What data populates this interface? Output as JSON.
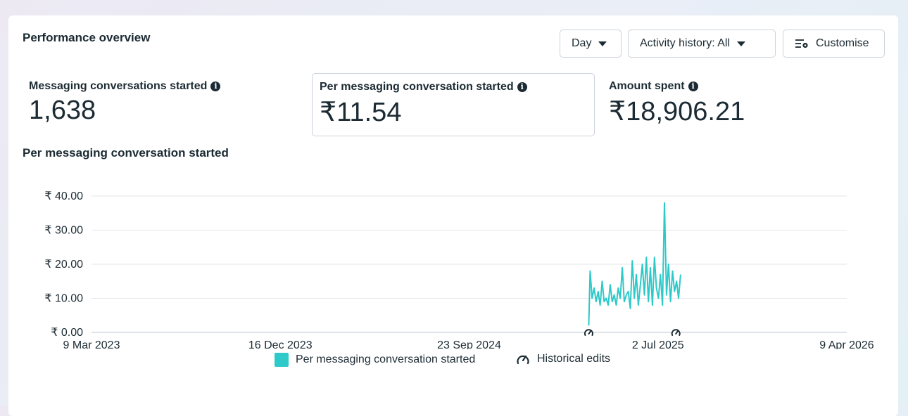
{
  "header": {
    "title": "Performance overview",
    "day_label": "Day",
    "activity_label": "Activity history: All",
    "customise_label": "Customise"
  },
  "metrics": [
    {
      "label": "Messaging conversations started",
      "value": "1,638"
    },
    {
      "label": "Per messaging conversation started",
      "value": "₹11.54"
    },
    {
      "label": "Amount spent",
      "value": "₹18,906.21"
    }
  ],
  "chart_data": {
    "type": "line",
    "title": "Per messaging conversation started",
    "y_ticks": [
      "₹ 40.00",
      "₹ 30.00",
      "₹ 20.00",
      "₹ 10.00",
      "₹ 0.00"
    ],
    "x_ticks": [
      "9 Mar 2023",
      "16 Dec 2023",
      "23 Sep 2024",
      "2 Jul 2025",
      "9 Apr 2026"
    ],
    "ylim": [
      0,
      40
    ],
    "xlim": [
      "2023-03-09",
      "2026-04-09"
    ],
    "grid": true,
    "color": "#2ec9c9",
    "series": [
      {
        "name": "Per messaging conversation started",
        "x": [
          "2025-03-20",
          "2025-03-22",
          "2025-03-25",
          "2025-03-28",
          "2025-03-31",
          "2025-04-03",
          "2025-04-06",
          "2025-04-09",
          "2025-04-12",
          "2025-04-15",
          "2025-04-18",
          "2025-04-21",
          "2025-04-24",
          "2025-04-27",
          "2025-04-30",
          "2025-05-03",
          "2025-05-06",
          "2025-05-09",
          "2025-05-12",
          "2025-05-15",
          "2025-05-18",
          "2025-05-21",
          "2025-05-24",
          "2025-05-27",
          "2025-05-30",
          "2025-06-02",
          "2025-06-05",
          "2025-06-08",
          "2025-06-11",
          "2025-06-14",
          "2025-06-17",
          "2025-06-20",
          "2025-06-23",
          "2025-06-26",
          "2025-06-29",
          "2025-07-02",
          "2025-07-05",
          "2025-07-08",
          "2025-07-11",
          "2025-07-14",
          "2025-07-17",
          "2025-07-20",
          "2025-07-23",
          "2025-07-26",
          "2025-07-29",
          "2025-08-01",
          "2025-08-04"
        ],
        "values": [
          2,
          18,
          10,
          13,
          9,
          12,
          8,
          15,
          9,
          10,
          8,
          14,
          9,
          11,
          8,
          13,
          10,
          19,
          9,
          11,
          12,
          7,
          21,
          10,
          17,
          8,
          14,
          20,
          11,
          22,
          9,
          19,
          8,
          22,
          13,
          10,
          17,
          8,
          38,
          11,
          20,
          9,
          18,
          12,
          15,
          10,
          17
        ]
      },
      {
        "name": "Historical edits",
        "x": [
          "2025-03-20",
          "2025-07-28"
        ]
      }
    ],
    "legend": [
      "Per messaging conversation started",
      "Historical edits"
    ],
    "legend_position": "bottom"
  }
}
